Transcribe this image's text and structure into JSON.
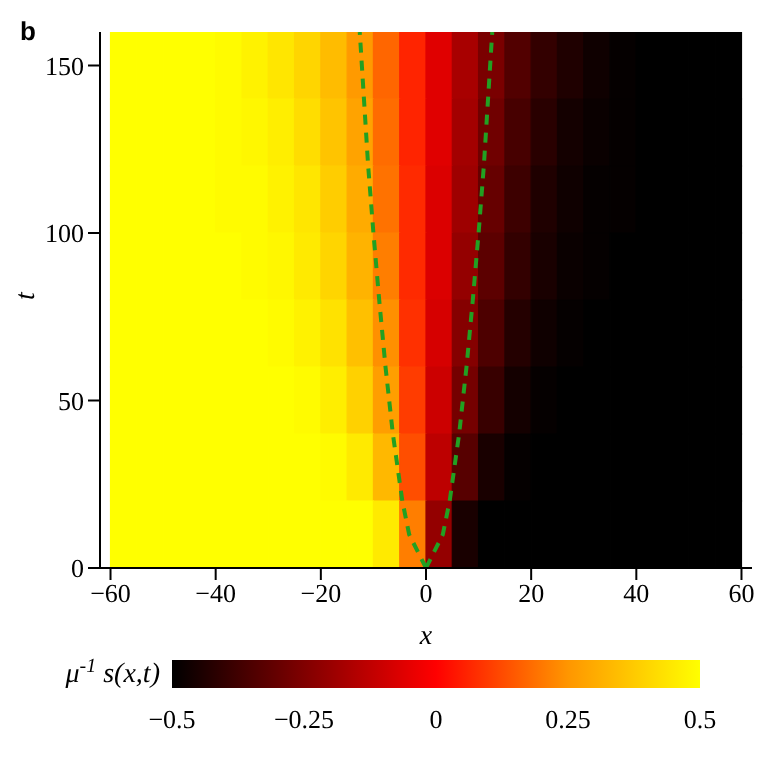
{
  "chart_data": {
    "type": "heatmap",
    "title": "b",
    "xlabel": "x",
    "ylabel": "t",
    "clabel": "μ$^{-1}$ s(x,t)",
    "x": [
      -57.5,
      -52.5,
      -47.5,
      -42.5,
      -37.5,
      -32.5,
      -27.5,
      -22.5,
      -17.5,
      -12.5,
      -7.5,
      -2.5,
      2.5,
      7.5,
      12.5,
      17.5,
      22.5,
      27.5,
      32.5,
      37.5,
      42.5,
      47.5,
      52.5,
      57.5
    ],
    "cells": [
      [
        0.5,
        0.5,
        0.5,
        0.5,
        0.49,
        0.47,
        0.44,
        0.4,
        0.34,
        0.26,
        0.17,
        0.06,
        -0.06,
        -0.17,
        -0.26,
        -0.34,
        -0.4,
        -0.44,
        -0.47,
        -0.49,
        -0.5,
        -0.5,
        -0.5,
        -0.5
      ],
      [
        0.5,
        0.5,
        0.5,
        0.5,
        0.49,
        0.48,
        0.46,
        0.42,
        0.36,
        0.28,
        0.18,
        0.06,
        -0.06,
        -0.18,
        -0.28,
        -0.36,
        -0.42,
        -0.46,
        -0.48,
        -0.49,
        -0.5,
        -0.5,
        -0.5,
        -0.5
      ],
      [
        0.5,
        0.5,
        0.5,
        0.5,
        0.49,
        0.49,
        0.47,
        0.44,
        0.38,
        0.3,
        0.19,
        0.07,
        -0.07,
        -0.19,
        -0.3,
        -0.38,
        -0.44,
        -0.47,
        -0.49,
        -0.49,
        -0.5,
        -0.5,
        -0.5,
        -0.5
      ],
      [
        0.5,
        0.5,
        0.5,
        0.5,
        0.5,
        0.49,
        0.48,
        0.45,
        0.4,
        0.32,
        0.21,
        0.07,
        -0.07,
        -0.21,
        -0.32,
        -0.4,
        -0.45,
        -0.48,
        -0.49,
        -0.5,
        -0.5,
        -0.5,
        -0.5,
        -0.5
      ],
      [
        0.5,
        0.5,
        0.5,
        0.5,
        0.5,
        0.5,
        0.49,
        0.47,
        0.43,
        0.35,
        0.24,
        0.08,
        -0.08,
        -0.24,
        -0.35,
        -0.43,
        -0.47,
        -0.49,
        -0.5,
        -0.5,
        -0.5,
        -0.5,
        -0.5,
        -0.5
      ],
      [
        0.5,
        0.5,
        0.5,
        0.5,
        0.5,
        0.5,
        0.5,
        0.49,
        0.46,
        0.39,
        0.27,
        0.1,
        -0.1,
        -0.27,
        -0.39,
        -0.46,
        -0.49,
        -0.5,
        -0.5,
        -0.5,
        -0.5,
        -0.5,
        -0.5,
        -0.5
      ],
      [
        0.5,
        0.5,
        0.5,
        0.5,
        0.5,
        0.5,
        0.5,
        0.5,
        0.49,
        0.45,
        0.33,
        0.13,
        -0.13,
        -0.33,
        -0.45,
        -0.49,
        -0.5,
        -0.5,
        -0.5,
        -0.5,
        -0.5,
        -0.5,
        -0.5,
        -0.5
      ],
      [
        0.5,
        0.5,
        0.5,
        0.5,
        0.5,
        0.5,
        0.5,
        0.5,
        0.5,
        0.5,
        0.45,
        0.21,
        -0.21,
        -0.45,
        -0.5,
        -0.5,
        -0.5,
        -0.5,
        -0.5,
        -0.5,
        -0.5,
        -0.5,
        -0.5,
        -0.5
      ]
    ],
    "clim": [
      -0.5,
      0.5
    ],
    "cticks": [
      -0.5,
      -0.25,
      0,
      0.25,
      0.5
    ],
    "xlim": [
      -62,
      62
    ],
    "xticks": [
      -60,
      -40,
      -20,
      0,
      20,
      40,
      60
    ],
    "ylim": [
      0,
      160
    ],
    "yticks": [
      0,
      50,
      100,
      150
    ],
    "line_style": "dashed",
    "series": [
      {
        "type": "line",
        "color": "#22a022",
        "x": [
          0,
          -3.2,
          -4.5,
          -6.3,
          -7.7,
          -8.9,
          -10,
          -11,
          -11.8,
          -12.6
        ],
        "values": [
          0,
          10,
          20,
          40,
          60,
          80,
          100,
          120,
          140,
          160
        ]
      },
      {
        "type": "line",
        "color": "#22a022",
        "x": [
          0,
          3.2,
          4.5,
          6.3,
          7.7,
          8.9,
          10,
          11,
          11.8,
          12.6
        ],
        "values": [
          0,
          10,
          20,
          40,
          60,
          80,
          100,
          120,
          140,
          160
        ]
      }
    ]
  }
}
